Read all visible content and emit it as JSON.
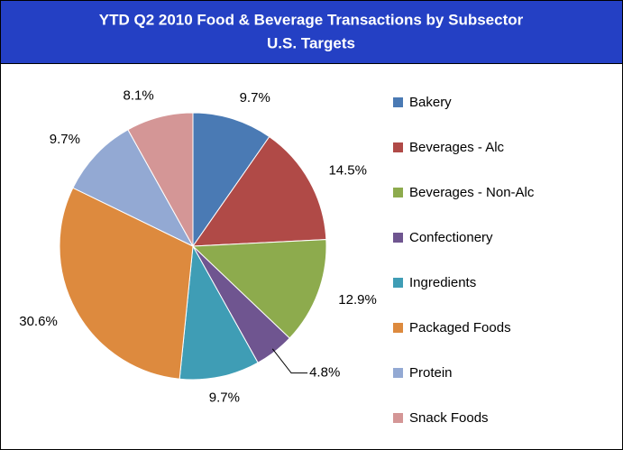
{
  "chart_data": {
    "type": "pie",
    "title": "YTD Q2 2010 Food & Beverage Transactions by Subsector",
    "subtitle": "U.S. Targets",
    "categories": [
      "Bakery",
      "Beverages - Alc",
      "Beverages - Non-Alc",
      "Confectionery",
      "Ingredients",
      "Packaged Foods",
      "Protein",
      "Snack Foods"
    ],
    "values": [
      9.7,
      14.5,
      12.9,
      4.8,
      9.7,
      30.6,
      9.7,
      8.1
    ],
    "value_labels": [
      "9.7%",
      "14.5%",
      "12.9%",
      "4.8%",
      "9.7%",
      "30.6%",
      "9.7%",
      "8.1%"
    ],
    "colors": [
      "#4a7ab4",
      "#b04a47",
      "#8dab4d",
      "#6f5590",
      "#3f9db5",
      "#dd8a3e",
      "#93a9d3",
      "#d49696"
    ],
    "legend": "right"
  }
}
